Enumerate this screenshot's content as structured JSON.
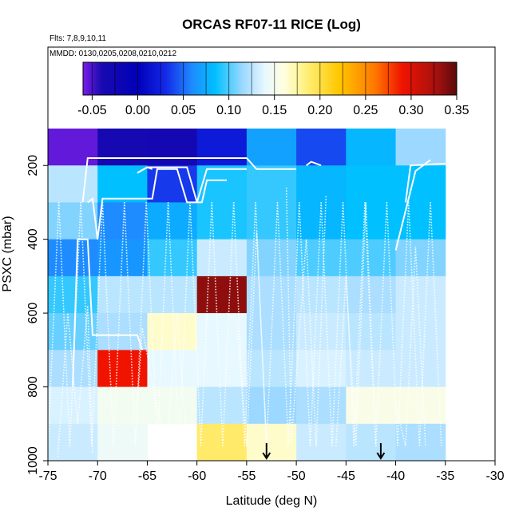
{
  "chart_data": {
    "type": "heatmap",
    "title": "ORCAS RF07-11 RICE (Log)",
    "annotations": [
      "Flts: 7,8,9,10,11",
      "MMDD: 0130,0205,0208,0210,0212"
    ],
    "xlabel": "Latitude (deg N)",
    "ylabel": "PSXC (mbar)",
    "xlim": [
      -75,
      -30
    ],
    "ylim": [
      1000,
      100
    ],
    "x_ticks": [
      -75,
      -70,
      -65,
      -60,
      -55,
      -50,
      -45,
      -40,
      -35,
      -30
    ],
    "x_tick_labels": [
      "-75",
      "-70",
      "-65",
      "-60",
      "-55",
      "-50",
      "-45",
      "-40",
      "-35",
      "-30"
    ],
    "y_ticks": [
      200,
      400,
      600,
      800,
      1000
    ],
    "y_tick_labels": [
      "200",
      "400",
      "600",
      "800",
      "1000"
    ],
    "colorbar": {
      "min": -0.06,
      "max": 0.35,
      "ticks": [
        -0.05,
        0.0,
        0.05,
        0.1,
        0.15,
        0.2,
        0.25,
        0.3,
        0.35
      ],
      "tick_labels": [
        "-0.05",
        "0.00",
        "0.05",
        "0.10",
        "0.15",
        "0.20",
        "0.25",
        "0.30",
        "0.35"
      ],
      "stops": [
        {
          "v": -0.06,
          "color": "#7a1ee8"
        },
        {
          "v": -0.04,
          "color": "#1a0ab0"
        },
        {
          "v": 0.0,
          "color": "#0000b8"
        },
        {
          "v": 0.03,
          "color": "#1428e8"
        },
        {
          "v": 0.06,
          "color": "#1e8cff"
        },
        {
          "v": 0.085,
          "color": "#00c0ff"
        },
        {
          "v": 0.115,
          "color": "#9cd8ff"
        },
        {
          "v": 0.14,
          "color": "#e8f8ff"
        },
        {
          "v": 0.16,
          "color": "#ffffe0"
        },
        {
          "v": 0.185,
          "color": "#fff07a"
        },
        {
          "v": 0.22,
          "color": "#ffc800"
        },
        {
          "v": 0.26,
          "color": "#ff7800"
        },
        {
          "v": 0.29,
          "color": "#f01400"
        },
        {
          "v": 0.33,
          "color": "#a01010"
        },
        {
          "v": 0.35,
          "color": "#5a0a0a"
        }
      ]
    },
    "x_bin_edges": [
      -75,
      -70,
      -65,
      -60,
      -55,
      -50,
      -45,
      -40,
      -35
    ],
    "p_bin_edges": [
      100,
      200,
      300,
      400,
      500,
      600,
      700,
      800,
      900,
      1000
    ],
    "cell_values": [
      [
        -0.055,
        -0.035,
        -0.03,
        0.02,
        0.07,
        0.04,
        0.08,
        0.115
      ],
      [
        0.125,
        0.085,
        0.035,
        0.09,
        0.095,
        0.08,
        0.085,
        0.085
      ],
      [
        0.11,
        0.06,
        0.075,
        0.09,
        0.095,
        0.08,
        0.085,
        0.085
      ],
      [
        0.06,
        0.065,
        0.095,
        0.13,
        0.11,
        0.1,
        0.1,
        0.11
      ],
      [
        0.095,
        0.125,
        0.125,
        0.335,
        0.12,
        0.125,
        0.12,
        0.13
      ],
      [
        0.105,
        0.12,
        0.165,
        0.14,
        0.12,
        0.13,
        0.125,
        0.13
      ],
      [
        0.12,
        0.29,
        0.14,
        0.14,
        0.125,
        0.135,
        0.13,
        0.13
      ],
      [
        0.135,
        0.15,
        0.15,
        0.125,
        0.115,
        0.12,
        0.155,
        0.155
      ],
      [
        0.13,
        0.145,
        null,
        0.19,
        0.165,
        0.13,
        0.125,
        0.12
      ]
    ],
    "markers": [
      {
        "type": "arrow-down",
        "lat": -53
      },
      {
        "type": "arrow-down",
        "lat": -41.5
      }
    ]
  }
}
